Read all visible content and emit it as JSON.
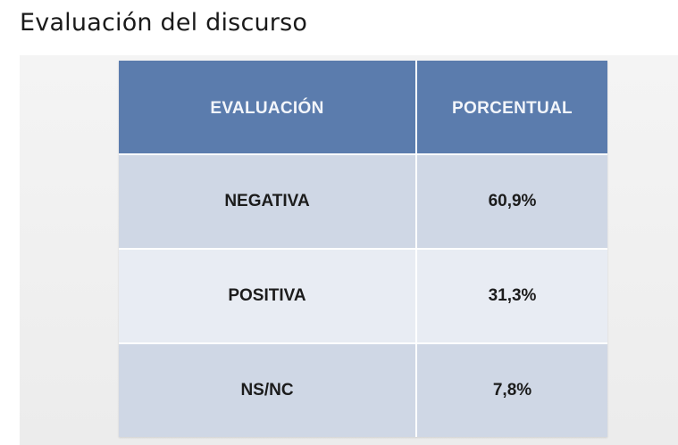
{
  "page": {
    "title": "Evaluación del discurso"
  },
  "table": {
    "headers": [
      "EVALUACIÓN",
      "PORCENTUAL"
    ],
    "rows": [
      {
        "evaluacion": "NEGATIVA",
        "porcentual": "60,9%"
      },
      {
        "evaluacion": "POSITIVA",
        "porcentual": "31,3%"
      },
      {
        "evaluacion": "NS/NC",
        "porcentual": "7,8%"
      }
    ]
  },
  "colors": {
    "header_bg": "#5b7cad",
    "row_dark": "#cfd7e5",
    "row_light": "#e8ecf3"
  }
}
